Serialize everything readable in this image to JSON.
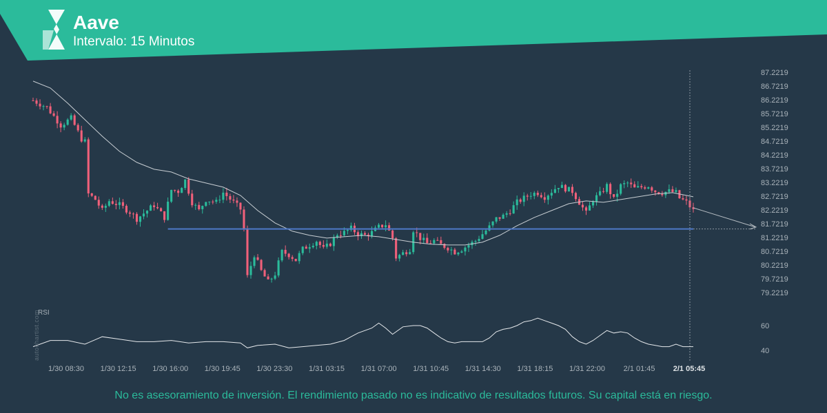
{
  "header": {
    "title": "Aave",
    "subtitle": "Intervalo: 15 Minutos",
    "band_color": "#2bbb9b",
    "logo": "autochartist-logo-icon"
  },
  "watermark": "autochartist.com",
  "disclaimer": "No es asesoramiento de inversión. El rendimiento pasado no es indicativo de resultados futuros. Su capital está en riesgo.",
  "colors": {
    "background": "#253848",
    "bullish": "#2bbb9b",
    "bearish": "#f0607a",
    "moving_average": "#c8ced3",
    "support_line": "#4e79c9",
    "axis_text": "#aab3ba"
  },
  "chart_data": {
    "type": "candlestick",
    "title": "Aave",
    "subtitle": "Intervalo: 15 Minutos",
    "y_ticks": [
      "87.2219",
      "86.7219",
      "86.2219",
      "85.7219",
      "85.2219",
      "84.7219",
      "84.2219",
      "83.7219",
      "83.2219",
      "82.7219",
      "82.2219",
      "81.7219",
      "81.2219",
      "80.7219",
      "80.2219",
      "79.7219",
      "79.2219"
    ],
    "ylim": [
      79.2219,
      87.2219
    ],
    "x_ticks": [
      "1/30 08:30",
      "1/30 12:15",
      "1/30 16:00",
      "1/30 19:45",
      "1/30 23:30",
      "1/31 03:15",
      "1/31 07:00",
      "1/31 10:45",
      "1/31 14:30",
      "1/31 18:15",
      "1/31 22:00",
      "2/1 01:45",
      "2/1 05:45"
    ],
    "highlight_x_tick": "2/1 05:45",
    "support_level": 81.53,
    "forecast": {
      "from": 82.3,
      "to": 81.6
    },
    "close_path": [
      [
        0,
        86.2
      ],
      [
        4,
        85.95
      ],
      [
        8,
        85.3
      ],
      [
        11,
        85.55
      ],
      [
        14,
        84.8
      ],
      [
        15,
        84.7
      ],
      [
        16,
        82.8
      ],
      [
        18,
        82.6
      ],
      [
        20,
        82.2
      ],
      [
        22,
        82.55
      ],
      [
        25,
        82.4
      ],
      [
        28,
        82.15
      ],
      [
        30,
        81.9
      ],
      [
        32,
        82.1
      ],
      [
        35,
        82.4
      ],
      [
        38,
        81.95
      ],
      [
        40,
        82.95
      ],
      [
        42,
        82.9
      ],
      [
        44,
        83.3
      ],
      [
        46,
        82.5
      ],
      [
        48,
        82.2
      ],
      [
        50,
        82.6
      ],
      [
        53,
        82.5
      ],
      [
        55,
        82.85
      ],
      [
        58,
        82.5
      ],
      [
        60,
        82.25
      ],
      [
        61,
        81.5
      ],
      [
        62,
        79.8
      ],
      [
        64,
        80.6
      ],
      [
        66,
        80.0
      ],
      [
        68,
        79.6
      ],
      [
        70,
        79.9
      ],
      [
        72,
        80.7
      ],
      [
        74,
        80.6
      ],
      [
        76,
        80.4
      ],
      [
        78,
        80.8
      ],
      [
        80,
        80.95
      ],
      [
        82,
        81.1
      ],
      [
        84,
        80.8
      ],
      [
        86,
        81.0
      ],
      [
        88,
        81.35
      ],
      [
        90,
        81.4
      ],
      [
        92,
        81.55
      ],
      [
        94,
        81.35
      ],
      [
        96,
        81.3
      ],
      [
        98,
        81.4
      ],
      [
        100,
        81.6
      ],
      [
        102,
        81.7
      ],
      [
        104,
        81.2
      ],
      [
        105,
        80.5
      ],
      [
        107,
        80.65
      ],
      [
        109,
        80.8
      ],
      [
        110,
        81.5
      ],
      [
        112,
        81.2
      ],
      [
        114,
        81.0
      ],
      [
        116,
        81.1
      ],
      [
        118,
        80.95
      ],
      [
        120,
        80.85
      ],
      [
        122,
        80.7
      ],
      [
        124,
        80.8
      ],
      [
        126,
        80.95
      ],
      [
        128,
        81.1
      ],
      [
        130,
        81.35
      ],
      [
        132,
        81.6
      ],
      [
        134,
        81.9
      ],
      [
        136,
        82.0
      ],
      [
        138,
        82.2
      ],
      [
        140,
        82.5
      ],
      [
        142,
        82.65
      ],
      [
        144,
        82.8
      ],
      [
        146,
        82.85
      ],
      [
        148,
        82.7
      ],
      [
        150,
        82.9
      ],
      [
        152,
        83.1
      ],
      [
        154,
        83.0
      ],
      [
        156,
        82.9
      ],
      [
        158,
        82.5
      ],
      [
        160,
        82.1
      ],
      [
        162,
        82.6
      ],
      [
        164,
        82.8
      ],
      [
        166,
        83.1
      ],
      [
        168,
        82.6
      ],
      [
        170,
        83.1
      ],
      [
        172,
        83.2
      ],
      [
        174,
        83.0
      ],
      [
        176,
        83.05
      ],
      [
        178,
        83.1
      ],
      [
        180,
        82.9
      ],
      [
        182,
        82.85
      ],
      [
        184,
        82.9
      ],
      [
        186,
        82.85
      ],
      [
        187,
        82.65
      ],
      [
        189,
        82.5
      ],
      [
        191,
        82.2
      ]
    ],
    "ma_path": [
      [
        0,
        86.9
      ],
      [
        5,
        86.65
      ],
      [
        10,
        86.1
      ],
      [
        15,
        85.5
      ],
      [
        20,
        84.9
      ],
      [
        25,
        84.35
      ],
      [
        30,
        83.95
      ],
      [
        35,
        83.7
      ],
      [
        40,
        83.6
      ],
      [
        45,
        83.35
      ],
      [
        50,
        83.2
      ],
      [
        55,
        83.05
      ],
      [
        60,
        82.75
      ],
      [
        65,
        82.2
      ],
      [
        70,
        81.75
      ],
      [
        75,
        81.45
      ],
      [
        80,
        81.3
      ],
      [
        85,
        81.2
      ],
      [
        90,
        81.25
      ],
      [
        95,
        81.3
      ],
      [
        100,
        81.25
      ],
      [
        105,
        81.15
      ],
      [
        110,
        81.05
      ],
      [
        115,
        80.98
      ],
      [
        120,
        80.95
      ],
      [
        125,
        80.95
      ],
      [
        130,
        81.05
      ],
      [
        135,
        81.3
      ],
      [
        140,
        81.65
      ],
      [
        145,
        81.95
      ],
      [
        150,
        82.2
      ],
      [
        155,
        82.45
      ],
      [
        160,
        82.55
      ],
      [
        165,
        82.5
      ],
      [
        170,
        82.6
      ],
      [
        175,
        82.7
      ],
      [
        180,
        82.8
      ],
      [
        185,
        82.85
      ],
      [
        191,
        82.7
      ]
    ],
    "rsi": {
      "label": "RSI",
      "ticks": [
        60,
        40
      ],
      "ylim": [
        35,
        70
      ],
      "path": [
        [
          0,
          43
        ],
        [
          5,
          48
        ],
        [
          10,
          48
        ],
        [
          15,
          45
        ],
        [
          20,
          51
        ],
        [
          25,
          49
        ],
        [
          30,
          47
        ],
        [
          35,
          47
        ],
        [
          40,
          48
        ],
        [
          45,
          46
        ],
        [
          50,
          47
        ],
        [
          55,
          47
        ],
        [
          60,
          46
        ],
        [
          62,
          42
        ],
        [
          65,
          44
        ],
        [
          70,
          45
        ],
        [
          74,
          42
        ],
        [
          78,
          43
        ],
        [
          82,
          44
        ],
        [
          86,
          45
        ],
        [
          90,
          48
        ],
        [
          94,
          54
        ],
        [
          98,
          58
        ],
        [
          100,
          62
        ],
        [
          102,
          58
        ],
        [
          104,
          53
        ],
        [
          107,
          59
        ],
        [
          110,
          60
        ],
        [
          112,
          60
        ],
        [
          114,
          58
        ],
        [
          116,
          54
        ],
        [
          118,
          50
        ],
        [
          120,
          47
        ],
        [
          122,
          46
        ],
        [
          124,
          47
        ],
        [
          126,
          47
        ],
        [
          128,
          47
        ],
        [
          130,
          47
        ],
        [
          132,
          50
        ],
        [
          134,
          55
        ],
        [
          136,
          57
        ],
        [
          138,
          58
        ],
        [
          140,
          60
        ],
        [
          142,
          63
        ],
        [
          144,
          64
        ],
        [
          146,
          66
        ],
        [
          148,
          64
        ],
        [
          150,
          62
        ],
        [
          152,
          60
        ],
        [
          154,
          57
        ],
        [
          156,
          51
        ],
        [
          158,
          47
        ],
        [
          160,
          45
        ],
        [
          162,
          48
        ],
        [
          164,
          52
        ],
        [
          166,
          56
        ],
        [
          168,
          54
        ],
        [
          170,
          55
        ],
        [
          172,
          54
        ],
        [
          174,
          50
        ],
        [
          176,
          47
        ],
        [
          178,
          45
        ],
        [
          180,
          44
        ],
        [
          182,
          43
        ],
        [
          184,
          43
        ],
        [
          186,
          45
        ],
        [
          188,
          43
        ],
        [
          190,
          43
        ],
        [
          191,
          43
        ]
      ]
    }
  }
}
